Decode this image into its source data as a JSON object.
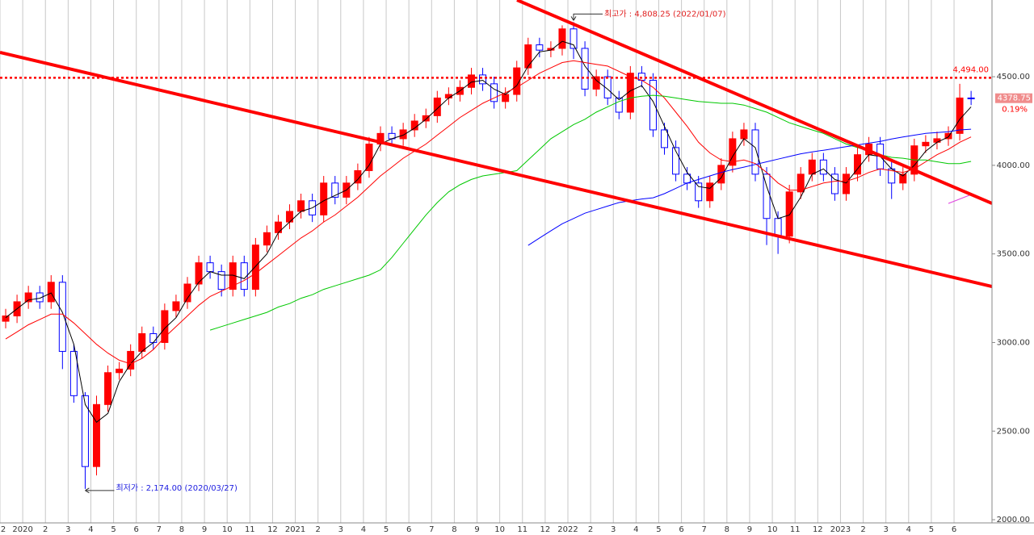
{
  "chart_data": {
    "type": "candlestick",
    "categories": [
      "2",
      null,
      "2020",
      null,
      "2",
      null,
      "3",
      null,
      "4",
      null,
      "5",
      null,
      "6",
      null,
      "7",
      null,
      "8",
      null,
      "9",
      null,
      "10",
      null,
      "11",
      null,
      "12",
      null,
      "2021",
      null,
      "2",
      null,
      "3",
      null,
      "4",
      null,
      "5",
      null,
      "6",
      null,
      "7",
      null,
      "8",
      null,
      "9",
      null,
      "10",
      null,
      "11",
      null,
      "12",
      null,
      "2022",
      null,
      "2",
      null,
      "3",
      null,
      "4",
      null,
      "5",
      null,
      "6",
      null,
      "7",
      null,
      "8",
      null,
      "9",
      null,
      "10",
      null,
      "11",
      null,
      "12",
      null,
      "2023",
      null,
      "2",
      null,
      "3",
      null,
      "4",
      null,
      "5",
      null,
      "6",
      null
    ],
    "open": [
      3120,
      3150,
      3230,
      3280,
      3230,
      3340,
      2950,
      2700,
      2300,
      2650,
      2830,
      2850,
      2950,
      3050,
      3000,
      3180,
      3230,
      3330,
      3450,
      3400,
      3300,
      3450,
      3300,
      3550,
      3620,
      3680,
      3740,
      3800,
      3720,
      3900,
      3820,
      3900,
      3970,
      4120,
      4180,
      4150,
      4200,
      4250,
      4280,
      4380,
      4400,
      4440,
      4510,
      4460,
      4360,
      4400,
      4550,
      4680,
      4650,
      4660,
      4770,
      4660,
      4430,
      4500,
      4380,
      4300,
      4520,
      4480,
      4200,
      4100,
      3950,
      3900,
      3800,
      3900,
      4000,
      4150,
      4200,
      3950,
      3700,
      3600,
      3850,
      3950,
      4030,
      3950,
      3840,
      3950,
      4060,
      4120,
      3980,
      3900,
      3950,
      4110,
      4130,
      4150,
      4180,
      4380
    ],
    "high": [
      3190,
      3270,
      3320,
      3320,
      3380,
      3380,
      2990,
      2720,
      2700,
      2870,
      2890,
      2990,
      3090,
      3090,
      3220,
      3270,
      3370,
      3490,
      3490,
      3440,
      3490,
      3490,
      3590,
      3660,
      3720,
      3780,
      3840,
      3840,
      3940,
      3940,
      3940,
      4010,
      4160,
      4220,
      4220,
      4240,
      4290,
      4320,
      4420,
      4440,
      4480,
      4550,
      4550,
      4500,
      4440,
      4590,
      4720,
      4720,
      4700,
      4790,
      4808.25,
      4700,
      4540,
      4540,
      4420,
      4560,
      4560,
      4520,
      4240,
      4140,
      3990,
      3940,
      3940,
      4040,
      4190,
      4240,
      4240,
      3990,
      3740,
      3890,
      3990,
      4070,
      4070,
      3990,
      3990,
      4100,
      4160,
      4160,
      4020,
      3990,
      4150,
      4170,
      4190,
      4220,
      4460,
      4420
    ],
    "low": [
      3080,
      3110,
      3190,
      3190,
      3190,
      2850,
      2660,
      2174,
      2250,
      2610,
      2790,
      2810,
      2910,
      2960,
      2960,
      3140,
      3190,
      3290,
      3360,
      3260,
      3260,
      3260,
      3260,
      3510,
      3580,
      3640,
      3700,
      3680,
      3680,
      3780,
      3780,
      3860,
      3930,
      4080,
      4110,
      4110,
      4160,
      4210,
      4240,
      4340,
      4360,
      4400,
      4420,
      4320,
      4320,
      4360,
      4510,
      4610,
      4610,
      4620,
      4600,
      4390,
      4390,
      4340,
      4260,
      4260,
      4440,
      4160,
      4060,
      3910,
      3860,
      3760,
      3760,
      3860,
      3960,
      4110,
      3910,
      3550,
      3500,
      3560,
      3810,
      3910,
      3910,
      3800,
      3800,
      3910,
      4020,
      3940,
      3810,
      3860,
      3910,
      4070,
      4090,
      4110,
      4140,
      4340
    ],
    "close": [
      3150,
      3230,
      3280,
      3230,
      3340,
      2950,
      2700,
      2300,
      2650,
      2830,
      2850,
      2950,
      3050,
      3000,
      3180,
      3230,
      3330,
      3450,
      3400,
      3300,
      3450,
      3300,
      3550,
      3620,
      3680,
      3740,
      3800,
      3720,
      3900,
      3820,
      3900,
      3970,
      4120,
      4180,
      4150,
      4200,
      4250,
      4280,
      4380,
      4400,
      4440,
      4510,
      4460,
      4360,
      4400,
      4550,
      4680,
      4650,
      4660,
      4770,
      4660,
      4430,
      4500,
      4380,
      4300,
      4520,
      4480,
      4200,
      4100,
      3950,
      3900,
      3800,
      3900,
      4000,
      4150,
      4200,
      3950,
      3700,
      3600,
      3850,
      3950,
      4030,
      3950,
      3840,
      3950,
      4060,
      4120,
      3980,
      3900,
      3950,
      4110,
      4130,
      4150,
      4180,
      4380,
      4379
    ],
    "up_color": "#ff0000",
    "down_color": "#0000ff",
    "series": [
      {
        "color": "#000000",
        "values": [
          3140,
          3190,
          3240,
          3250,
          3280,
          3170,
          2990,
          2650,
          2550,
          2600,
          2780,
          2880,
          2950,
          3000,
          3080,
          3140,
          3250,
          3340,
          3400,
          3380,
          3380,
          3360,
          3430,
          3500,
          3620,
          3680,
          3740,
          3760,
          3800,
          3830,
          3860,
          3920,
          4000,
          4120,
          4150,
          4170,
          4210,
          4260,
          4320,
          4380,
          4420,
          4470,
          4480,
          4430,
          4400,
          4450,
          4560,
          4640,
          4650,
          4700,
          4680,
          4560,
          4480,
          4430,
          4370,
          4420,
          4450,
          4360,
          4220,
          4080,
          3960,
          3880,
          3870,
          3930,
          4050,
          4150,
          4100,
          3880,
          3700,
          3720,
          3820,
          3950,
          3980,
          3920,
          3900,
          3980,
          4060,
          4050,
          3980,
          3940,
          4000,
          4080,
          4130,
          4160,
          4260,
          4330
        ]
      },
      {
        "color": "#ff0000",
        "values": [
          3020,
          3060,
          3100,
          3130,
          3160,
          3160,
          3110,
          3050,
          2990,
          2940,
          2900,
          2880,
          2910,
          2960,
          3030,
          3090,
          3150,
          3210,
          3260,
          3290,
          3320,
          3350,
          3390,
          3440,
          3490,
          3540,
          3590,
          3630,
          3680,
          3720,
          3770,
          3820,
          3880,
          3940,
          3990,
          4040,
          4080,
          4120,
          4170,
          4220,
          4270,
          4310,
          4350,
          4380,
          4410,
          4440,
          4480,
          4520,
          4550,
          4580,
          4590,
          4580,
          4570,
          4560,
          4530,
          4500,
          4480,
          4440,
          4380,
          4300,
          4220,
          4130,
          4070,
          4030,
          4020,
          4030,
          4010,
          3960,
          3900,
          3860,
          3860,
          3880,
          3900,
          3910,
          3910,
          3930,
          3960,
          3980,
          3970,
          3960,
          3980,
          4020,
          4060,
          4090,
          4130,
          4160
        ]
      },
      {
        "color": "#00c800",
        "values": [
          null,
          null,
          null,
          null,
          null,
          null,
          null,
          null,
          null,
          null,
          null,
          null,
          null,
          null,
          null,
          null,
          null,
          null,
          3070,
          3090,
          3110,
          3130,
          3150,
          3170,
          3200,
          3220,
          3250,
          3270,
          3300,
          3320,
          3340,
          3360,
          3380,
          3410,
          3480,
          3560,
          3640,
          3720,
          3790,
          3850,
          3890,
          3920,
          3940,
          3950,
          3960,
          3970,
          4030,
          4090,
          4150,
          4190,
          4230,
          4260,
          4300,
          4330,
          4360,
          4380,
          4390,
          4395,
          4390,
          4380,
          4370,
          4360,
          4355,
          4350,
          4350,
          4340,
          4320,
          4300,
          4270,
          4240,
          4220,
          4200,
          4180,
          4150,
          4120,
          4100,
          4080,
          4060,
          4045,
          4040,
          4030,
          4030,
          4020,
          4010,
          4010,
          4022
        ]
      },
      {
        "color": "#0000ff",
        "values": [
          null,
          null,
          null,
          null,
          null,
          null,
          null,
          null,
          null,
          null,
          null,
          null,
          null,
          null,
          null,
          null,
          null,
          null,
          null,
          null,
          null,
          null,
          null,
          null,
          null,
          null,
          null,
          null,
          null,
          null,
          null,
          null,
          null,
          null,
          null,
          null,
          null,
          null,
          null,
          null,
          null,
          null,
          null,
          null,
          null,
          null,
          3548,
          3590,
          3630,
          3670,
          3700,
          3730,
          3750,
          3770,
          3790,
          3800,
          3810,
          3817,
          3840,
          3870,
          3900,
          3920,
          3940,
          3960,
          3976,
          3990,
          4005,
          4020,
          4035,
          4050,
          4065,
          4076,
          4085,
          4095,
          4105,
          4115,
          4125,
          4135,
          4149,
          4160,
          4170,
          4180,
          4185,
          4190,
          4200,
          4204
        ]
      },
      {
        "color": "#e040e0",
        "values": [
          null,
          null,
          null,
          null,
          null,
          null,
          null,
          null,
          null,
          null,
          null,
          null,
          null,
          null,
          null,
          null,
          null,
          null,
          null,
          null,
          null,
          null,
          null,
          null,
          null,
          null,
          null,
          null,
          null,
          null,
          null,
          null,
          null,
          null,
          null,
          null,
          null,
          null,
          null,
          null,
          null,
          null,
          null,
          null,
          null,
          null,
          null,
          null,
          null,
          null,
          null,
          null,
          null,
          null,
          null,
          null,
          null,
          null,
          null,
          null,
          null,
          null,
          null,
          null,
          null,
          null,
          null,
          null,
          null,
          null,
          null,
          null,
          null,
          null,
          null,
          null,
          null,
          null,
          null,
          null,
          null,
          null,
          null,
          3785,
          3810,
          3835
        ]
      }
    ],
    "trendlines": [
      {
        "color": "#ff0000",
        "from": [
          -0.5,
          4637
        ],
        "to": [
          86.84,
          3316
        ]
      },
      {
        "color": "#ff0000",
        "from": [
          45.02,
          4933
        ],
        "to": [
          86.84,
          3785
        ]
      }
    ],
    "hline": {
      "value": 4494,
      "label": "4,494.00",
      "color": "#ff0000"
    },
    "high_label": "최고가 : 4,808.25 (2022/01/07)",
    "high_index": 50,
    "low_label": "최저가 : 2,174.00 (2020/03/27)",
    "low_index": 7,
    "last_price": 4378.75,
    "change_label": "0.19%",
    "ylim": [
      1982,
      4933
    ],
    "yticks": [
      {
        "value": 2000,
        "label": "2000.00"
      },
      {
        "value": 2500,
        "label": "2500.00"
      },
      {
        "value": 3000,
        "label": "3000.00"
      },
      {
        "value": 3500,
        "label": "3500.00"
      },
      {
        "value": 4000,
        "label": "4000.00"
      },
      {
        "value": 4500,
        "label": "4500.00"
      }
    ],
    "grid": true
  }
}
